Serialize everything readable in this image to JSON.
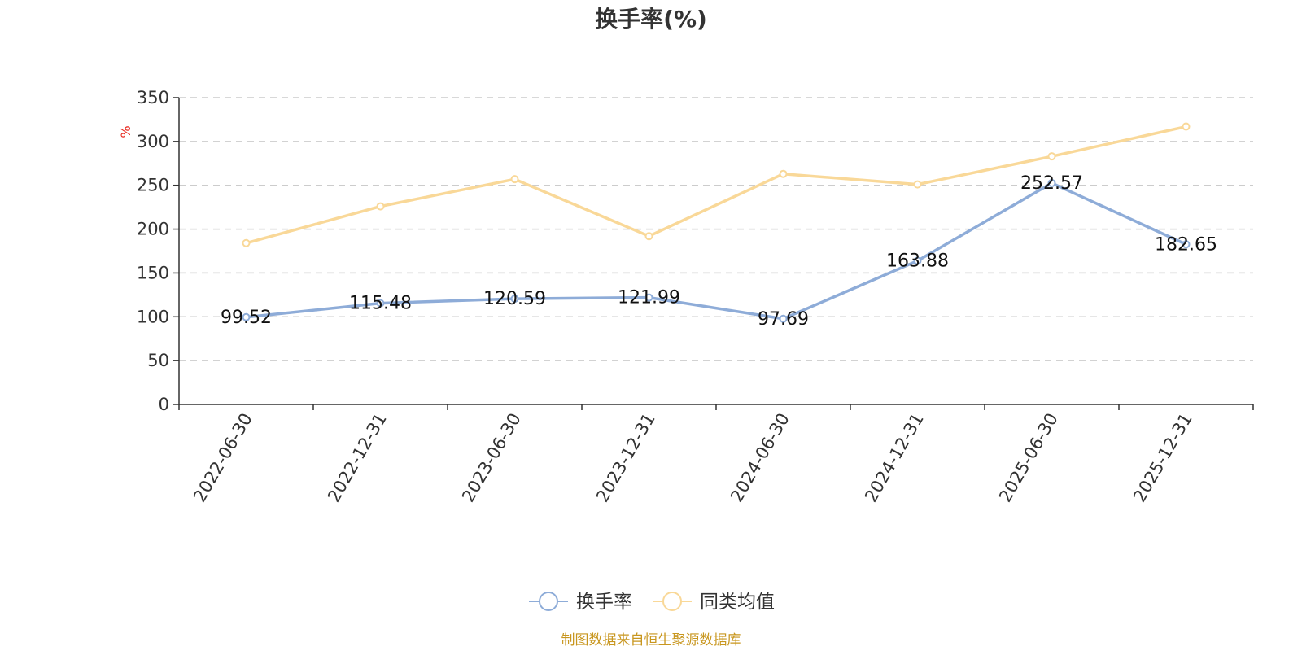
{
  "chart_data": {
    "type": "line",
    "title": "换手率(%)",
    "ylabel": "%",
    "xlabel": "",
    "ylim": [
      0,
      350
    ],
    "yticks": [
      0,
      50,
      100,
      150,
      200,
      250,
      300,
      350
    ],
    "grid": true,
    "legend_position": "bottom",
    "categories": [
      "2022-06-30",
      "2022-12-31",
      "2023-06-30",
      "2023-12-31",
      "2024-06-30",
      "2024-12-31",
      "2025-06-30",
      "2025-12-31"
    ],
    "series": [
      {
        "name": "换手率",
        "color": "#8eacd8",
        "values": [
          99.52,
          115.48,
          120.59,
          121.99,
          97.69,
          163.88,
          252.57,
          182.65
        ],
        "labels": [
          "99.52",
          "115.48",
          "120.59",
          "121.99",
          "97.69",
          "163.88",
          "252.57",
          "182.65"
        ]
      },
      {
        "name": "同类均值",
        "color": "#f9d898",
        "values": [
          184,
          226,
          257,
          192,
          263,
          251,
          283,
          317
        ]
      }
    ]
  },
  "source_note": "制图数据来自恒生聚源数据库",
  "colors": {
    "axis": "#333333",
    "grid": "#cccccc",
    "unit": "#e8281e",
    "source": "#c8961e"
  }
}
